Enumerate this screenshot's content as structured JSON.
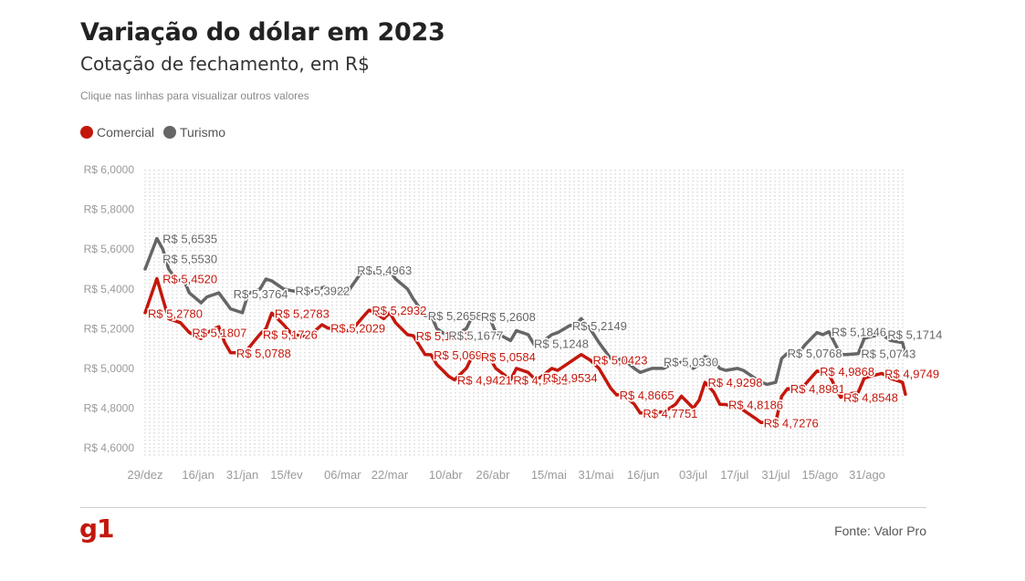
{
  "header": {
    "title": "Variação do dólar em 2023",
    "subtitle": "Cotação de fechamento, em R$",
    "hint": "Clique nas linhas para visualizar outros valores"
  },
  "footer": {
    "logo": "g1",
    "source": "Fonte: Valor Pro"
  },
  "colors": {
    "comercial": "#c4170c",
    "turismo": "#666666",
    "grid": "#c8c8c8",
    "axis_text": "#9a9a9a"
  },
  "chart_data": {
    "type": "line",
    "title": "Variação do dólar em 2023",
    "subtitle": "Cotação de fechamento, em R$",
    "ylim": [
      4.55,
      6.0
    ],
    "y_ticks": [
      6.0,
      5.8,
      5.6,
      5.4,
      5.2,
      5.0,
      4.8,
      4.6
    ],
    "y_tick_labels": [
      "R$ 6,0000",
      "R$ 5,8000",
      "R$ 5,6000",
      "R$ 5,4000",
      "R$ 5,2000",
      "R$ 5,0000",
      "R$ 4,8000",
      "R$ 4,6000"
    ],
    "xlim": [
      "2022-12-29",
      "2023-09-13"
    ],
    "x_ticks": [
      "2022-12-29",
      "2023-01-16",
      "2023-01-31",
      "2023-02-15",
      "2023-03-06",
      "2023-03-22",
      "2023-04-10",
      "2023-04-26",
      "2023-05-15",
      "2023-05-31",
      "2023-06-16",
      "2023-07-03",
      "2023-07-17",
      "2023-07-31",
      "2023-08-15",
      "2023-08-31"
    ],
    "x_tick_labels": [
      "29/dez",
      "16/jan",
      "31/jan",
      "15/fev",
      "06/mar",
      "22/mar",
      "10/abr",
      "26/abr",
      "15/mai",
      "31/mai",
      "16/jun",
      "03/jul",
      "17/jul",
      "31/jul",
      "15/ago",
      "31/ago"
    ],
    "grid": true,
    "legend": "top-left",
    "series": [
      {
        "name": "Comercial",
        "color": "#c4170c",
        "points": [
          [
            "2022-12-29",
            5.28
          ],
          [
            "2023-01-02",
            5.452
          ],
          [
            "2023-01-04",
            5.35
          ],
          [
            "2023-01-06",
            5.25
          ],
          [
            "2023-01-10",
            5.23
          ],
          [
            "2023-01-13",
            5.1807
          ],
          [
            "2023-01-17",
            5.15
          ],
          [
            "2023-01-19",
            5.18
          ],
          [
            "2023-01-23",
            5.21
          ],
          [
            "2023-01-25",
            5.13
          ],
          [
            "2023-01-27",
            5.0788
          ],
          [
            "2023-01-31",
            5.08
          ],
          [
            "2023-02-02",
            5.1
          ],
          [
            "2023-02-06",
            5.1726
          ],
          [
            "2023-02-08",
            5.2
          ],
          [
            "2023-02-10",
            5.2783
          ],
          [
            "2023-02-14",
            5.22
          ],
          [
            "2023-02-17",
            5.17
          ],
          [
            "2023-02-22",
            5.16
          ],
          [
            "2023-02-24",
            5.18
          ],
          [
            "2023-02-27",
            5.22
          ],
          [
            "2023-03-01",
            5.2029
          ],
          [
            "2023-03-03",
            5.2
          ],
          [
            "2023-03-07",
            5.19
          ],
          [
            "2023-03-09",
            5.19
          ],
          [
            "2023-03-13",
            5.26
          ],
          [
            "2023-03-15",
            5.2932
          ],
          [
            "2023-03-17",
            5.28
          ],
          [
            "2023-03-20",
            5.25
          ],
          [
            "2023-03-22",
            5.28
          ],
          [
            "2023-03-24",
            5.23
          ],
          [
            "2023-03-28",
            5.17
          ],
          [
            "2023-03-30",
            5.1643
          ],
          [
            "2023-04-03",
            5.07
          ],
          [
            "2023-04-05",
            5.0691
          ],
          [
            "2023-04-07",
            5.02
          ],
          [
            "2023-04-11",
            4.96
          ],
          [
            "2023-04-13",
            4.9421
          ],
          [
            "2023-04-17",
            5.0
          ],
          [
            "2023-04-19",
            5.06
          ],
          [
            "2023-04-21",
            5.0584
          ],
          [
            "2023-04-25",
            5.05
          ],
          [
            "2023-04-27",
            5.0
          ],
          [
            "2023-05-02",
            4.9431
          ],
          [
            "2023-05-04",
            5.0
          ],
          [
            "2023-05-08",
            4.98
          ],
          [
            "2023-05-10",
            4.95
          ],
          [
            "2023-05-12",
            4.9534
          ],
          [
            "2023-05-16",
            5.0
          ],
          [
            "2023-05-18",
            4.99
          ],
          [
            "2023-05-22",
            5.03
          ],
          [
            "2023-05-24",
            5.05
          ],
          [
            "2023-05-26",
            5.07
          ],
          [
            "2023-05-29",
            5.0423
          ],
          [
            "2023-06-01",
            5.0
          ],
          [
            "2023-06-05",
            4.9
          ],
          [
            "2023-06-07",
            4.8665
          ],
          [
            "2023-06-09",
            4.87
          ],
          [
            "2023-06-13",
            4.82
          ],
          [
            "2023-06-15",
            4.7751
          ],
          [
            "2023-06-19",
            4.78
          ],
          [
            "2023-06-23",
            4.78
          ],
          [
            "2023-06-27",
            4.82
          ],
          [
            "2023-06-29",
            4.86
          ],
          [
            "2023-07-03",
            4.8
          ],
          [
            "2023-07-05",
            4.84
          ],
          [
            "2023-07-07",
            4.9298
          ],
          [
            "2023-07-10",
            4.88
          ],
          [
            "2023-07-12",
            4.82
          ],
          [
            "2023-07-14",
            4.8186
          ],
          [
            "2023-07-18",
            4.8
          ],
          [
            "2023-07-20",
            4.79
          ],
          [
            "2023-07-24",
            4.75
          ],
          [
            "2023-07-26",
            4.7276
          ],
          [
            "2023-07-28",
            4.73
          ],
          [
            "2023-07-31",
            4.73
          ],
          [
            "2023-08-02",
            4.86
          ],
          [
            "2023-08-04",
            4.8981
          ],
          [
            "2023-08-08",
            4.89
          ],
          [
            "2023-08-10",
            4.92
          ],
          [
            "2023-08-14",
            4.9868
          ],
          [
            "2023-08-16",
            4.98
          ],
          [
            "2023-08-18",
            4.97
          ],
          [
            "2023-08-22",
            4.8548
          ],
          [
            "2023-08-24",
            4.87
          ],
          [
            "2023-08-28",
            4.88
          ],
          [
            "2023-08-30",
            4.95
          ],
          [
            "2023-09-01",
            4.96
          ],
          [
            "2023-09-05",
            4.9749
          ],
          [
            "2023-09-08",
            4.95
          ],
          [
            "2023-09-12",
            4.93
          ],
          [
            "2023-09-13",
            4.87
          ]
        ],
        "labels": [
          [
            "2023-01-03",
            5.452,
            "R$ 5,4520"
          ],
          [
            "2022-12-29",
            5.278,
            "R$ 5,2780"
          ],
          [
            "2023-01-13",
            5.1807,
            "R$ 5,1807"
          ],
          [
            "2023-01-28",
            5.0788,
            "R$ 5,0788"
          ],
          [
            "2023-02-06",
            5.1726,
            "R$ 5,1726"
          ],
          [
            "2023-02-10",
            5.2783,
            "R$ 5,2783"
          ],
          [
            "2023-03-01",
            5.2029,
            "R$ 5,2029"
          ],
          [
            "2023-03-15",
            5.2932,
            "R$ 5,2932"
          ],
          [
            "2023-03-30",
            5.1643,
            "R$ 5,1643"
          ],
          [
            "2023-04-05",
            5.0691,
            "R$ 5,0691"
          ],
          [
            "2023-04-13",
            4.9421,
            "R$ 4,9421"
          ],
          [
            "2023-04-21",
            5.0584,
            "R$ 5,0584"
          ],
          [
            "2023-05-02",
            4.9431,
            "R$ 4,9431"
          ],
          [
            "2023-05-12",
            4.9534,
            "R$ 4,9534"
          ],
          [
            "2023-05-29",
            5.0423,
            "R$ 5,0423"
          ],
          [
            "2023-06-07",
            4.8665,
            "R$ 4,8665"
          ],
          [
            "2023-06-15",
            4.7751,
            "R$ 4,7751"
          ],
          [
            "2023-07-07",
            4.9298,
            "R$ 4,9298"
          ],
          [
            "2023-07-14",
            4.8186,
            "R$ 4,8186"
          ],
          [
            "2023-07-26",
            4.7276,
            "R$ 4,7276"
          ],
          [
            "2023-08-04",
            4.8981,
            "R$ 4,8981"
          ],
          [
            "2023-08-14",
            4.9868,
            "R$ 4,9868"
          ],
          [
            "2023-08-22",
            4.8548,
            "R$ 4,8548"
          ],
          [
            "2023-09-05",
            4.9749,
            "R$ 4,9749"
          ]
        ]
      },
      {
        "name": "Turismo",
        "color": "#666666",
        "points": [
          [
            "2022-12-29",
            5.5
          ],
          [
            "2023-01-02",
            5.6535
          ],
          [
            "2023-01-04",
            5.6
          ],
          [
            "2023-01-06",
            5.5
          ],
          [
            "2023-01-09",
            5.44
          ],
          [
            "2023-01-11",
            5.45
          ],
          [
            "2023-01-13",
            5.38
          ],
          [
            "2023-01-17",
            5.33
          ],
          [
            "2023-01-19",
            5.36
          ],
          [
            "2023-01-23",
            5.38
          ],
          [
            "2023-01-25",
            5.34
          ],
          [
            "2023-01-27",
            5.3
          ],
          [
            "2023-01-31",
            5.28
          ],
          [
            "2023-02-02",
            5.3764
          ],
          [
            "2023-02-06",
            5.4
          ],
          [
            "2023-02-08",
            5.45
          ],
          [
            "2023-02-10",
            5.44
          ],
          [
            "2023-02-14",
            5.4
          ],
          [
            "2023-02-17",
            5.39
          ],
          [
            "2023-02-22",
            5.38
          ],
          [
            "2023-02-24",
            5.3922
          ],
          [
            "2023-02-28",
            5.41
          ],
          [
            "2023-03-02",
            5.4
          ],
          [
            "2023-03-06",
            5.39
          ],
          [
            "2023-03-08",
            5.39
          ],
          [
            "2023-03-13",
            5.4963
          ],
          [
            "2023-03-15",
            5.49
          ],
          [
            "2023-03-17",
            5.48
          ],
          [
            "2023-03-20",
            5.47
          ],
          [
            "2023-03-22",
            5.49
          ],
          [
            "2023-03-24",
            5.45
          ],
          [
            "2023-03-28",
            5.4
          ],
          [
            "2023-03-30",
            5.35
          ],
          [
            "2023-04-03",
            5.2658
          ],
          [
            "2023-04-05",
            5.27
          ],
          [
            "2023-04-07",
            5.2
          ],
          [
            "2023-04-11",
            5.16
          ],
          [
            "2023-04-13",
            5.1677
          ],
          [
            "2023-04-17",
            5.2
          ],
          [
            "2023-04-19",
            5.26
          ],
          [
            "2023-04-21",
            5.2608
          ],
          [
            "2023-04-25",
            5.25
          ],
          [
            "2023-04-27",
            5.18
          ],
          [
            "2023-05-02",
            5.14
          ],
          [
            "2023-05-04",
            5.19
          ],
          [
            "2023-05-08",
            5.17
          ],
          [
            "2023-05-10",
            5.12
          ],
          [
            "2023-05-12",
            5.1248
          ],
          [
            "2023-05-16",
            5.17
          ],
          [
            "2023-05-18",
            5.18
          ],
          [
            "2023-05-22",
            5.2149
          ],
          [
            "2023-05-24",
            5.22
          ],
          [
            "2023-05-26",
            5.25
          ],
          [
            "2023-05-29",
            5.2
          ],
          [
            "2023-06-01",
            5.13
          ],
          [
            "2023-06-05",
            5.05
          ],
          [
            "2023-06-07",
            5.04
          ],
          [
            "2023-06-09",
            5.05
          ],
          [
            "2023-06-13",
            5.0
          ],
          [
            "2023-06-15",
            4.98
          ],
          [
            "2023-06-19",
            5.0
          ],
          [
            "2023-06-23",
            5.0
          ],
          [
            "2023-06-27",
            5.033
          ],
          [
            "2023-06-29",
            5.03
          ],
          [
            "2023-07-03",
            5.0
          ],
          [
            "2023-07-05",
            5.02
          ],
          [
            "2023-07-07",
            5.06
          ],
          [
            "2023-07-10",
            5.04
          ],
          [
            "2023-07-12",
            5.0
          ],
          [
            "2023-07-14",
            4.99
          ],
          [
            "2023-07-18",
            5.0
          ],
          [
            "2023-07-20",
            4.99
          ],
          [
            "2023-07-24",
            4.95
          ],
          [
            "2023-07-26",
            4.93
          ],
          [
            "2023-07-28",
            4.92
          ],
          [
            "2023-07-31",
            4.93
          ],
          [
            "2023-08-02",
            5.05
          ],
          [
            "2023-08-04",
            5.0768
          ],
          [
            "2023-08-08",
            5.08
          ],
          [
            "2023-08-10",
            5.12
          ],
          [
            "2023-08-14",
            5.18
          ],
          [
            "2023-08-16",
            5.17
          ],
          [
            "2023-08-18",
            5.1846
          ],
          [
            "2023-08-22",
            5.07
          ],
          [
            "2023-08-24",
            5.07
          ],
          [
            "2023-08-28",
            5.0743
          ],
          [
            "2023-08-30",
            5.15
          ],
          [
            "2023-09-01",
            5.16
          ],
          [
            "2023-09-05",
            5.1714
          ],
          [
            "2023-09-08",
            5.14
          ],
          [
            "2023-09-12",
            5.13
          ],
          [
            "2023-09-13",
            5.07
          ]
        ],
        "labels": [
          [
            "2023-01-03",
            5.6535,
            "R$ 5,6535"
          ],
          [
            "2023-01-03",
            5.553,
            "R$ 5,5530"
          ],
          [
            "2023-01-27",
            5.3764,
            "R$ 5,3764"
          ],
          [
            "2023-02-17",
            5.3922,
            "R$ 5,3922"
          ],
          [
            "2023-03-10",
            5.4963,
            "R$ 5,4963"
          ],
          [
            "2023-04-03",
            5.2658,
            "R$ 5,2658"
          ],
          [
            "2023-04-10",
            5.1677,
            "R$ 5,1677"
          ],
          [
            "2023-04-21",
            5.2608,
            "R$ 5,2608"
          ],
          [
            "2023-05-09",
            5.1248,
            "R$ 5,1248"
          ],
          [
            "2023-05-22",
            5.2149,
            "R$ 5,2149"
          ],
          [
            "2023-06-22",
            5.033,
            "R$ 5,0330"
          ],
          [
            "2023-08-03",
            5.0768,
            "R$ 5,0768"
          ],
          [
            "2023-08-18",
            5.1846,
            "R$ 5,1846"
          ],
          [
            "2023-08-28",
            5.0743,
            "R$ 5,0743"
          ],
          [
            "2023-09-06",
            5.1714,
            "R$ 5,1714"
          ]
        ]
      }
    ]
  }
}
